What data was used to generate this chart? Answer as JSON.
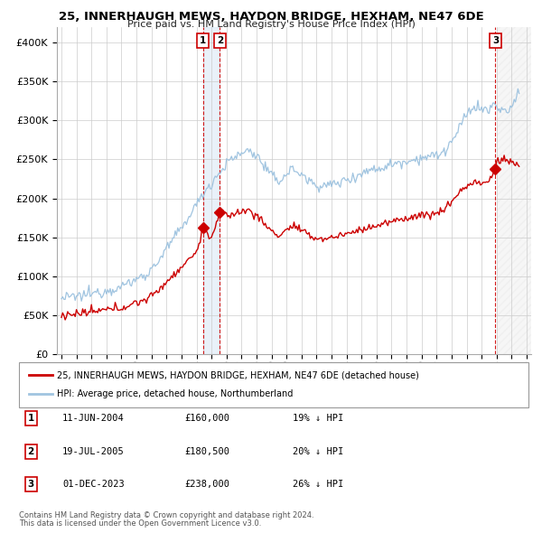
{
  "title": "25, INNERHAUGH MEWS, HAYDON BRIDGE, HEXHAM, NE47 6DE",
  "subtitle": "Price paid vs. HM Land Registry's House Price Index (HPI)",
  "legend_line1": "25, INNERHAUGH MEWS, HAYDON BRIDGE, HEXHAM, NE47 6DE (detached house)",
  "legend_line2": "HPI: Average price, detached house, Northumberland",
  "footnote1": "Contains HM Land Registry data © Crown copyright and database right 2024.",
  "footnote2": "This data is licensed under the Open Government Licence v3.0.",
  "sales": [
    {
      "label": "1",
      "date_str": "11-JUN-2004",
      "price": "£160,000",
      "note": "19% ↓ HPI",
      "date_num": 2004.44
    },
    {
      "label": "2",
      "date_str": "19-JUL-2005",
      "price": "£180,500",
      "note": "20% ↓ HPI",
      "date_num": 2005.55
    },
    {
      "label": "3",
      "date_str": "01-DEC-2023",
      "price": "£238,000",
      "note": "26% ↓ HPI",
      "date_num": 2023.92
    }
  ],
  "hpi_color": "#a0c4e0",
  "price_color": "#cc0000",
  "vline_color": "#cc0000",
  "marker_border_color": "#cc0000",
  "ylim": [
    0,
    420000
  ],
  "xlim_start": 1994.7,
  "xlim_end": 2026.3,
  "hpi_anchors": [
    [
      1995.0,
      72000
    ],
    [
      1996.0,
      74000
    ],
    [
      1997.0,
      78000
    ],
    [
      1998.0,
      82000
    ],
    [
      1999.0,
      87000
    ],
    [
      2000.0,
      96000
    ],
    [
      2001.0,
      108000
    ],
    [
      2002.0,
      135000
    ],
    [
      2003.0,
      162000
    ],
    [
      2004.0,
      192000
    ],
    [
      2004.5,
      208000
    ],
    [
      2005.0,
      220000
    ],
    [
      2005.5,
      232000
    ],
    [
      2006.0,
      245000
    ],
    [
      2007.0,
      258000
    ],
    [
      2007.5,
      262000
    ],
    [
      2008.0,
      255000
    ],
    [
      2008.5,
      242000
    ],
    [
      2009.0,
      228000
    ],
    [
      2009.5,
      222000
    ],
    [
      2010.0,
      232000
    ],
    [
      2010.5,
      238000
    ],
    [
      2011.0,
      230000
    ],
    [
      2011.5,
      222000
    ],
    [
      2012.0,
      218000
    ],
    [
      2012.5,
      215000
    ],
    [
      2013.0,
      218000
    ],
    [
      2013.5,
      220000
    ],
    [
      2014.0,
      224000
    ],
    [
      2014.5,
      228000
    ],
    [
      2015.0,
      232000
    ],
    [
      2015.5,
      236000
    ],
    [
      2016.0,
      238000
    ],
    [
      2016.5,
      240000
    ],
    [
      2017.0,
      244000
    ],
    [
      2017.5,
      246000
    ],
    [
      2018.0,
      248000
    ],
    [
      2018.5,
      250000
    ],
    [
      2019.0,
      252000
    ],
    [
      2019.5,
      254000
    ],
    [
      2020.0,
      254000
    ],
    [
      2020.5,
      260000
    ],
    [
      2021.0,
      272000
    ],
    [
      2021.5,
      288000
    ],
    [
      2022.0,
      308000
    ],
    [
      2022.5,
      318000
    ],
    [
      2023.0,
      315000
    ],
    [
      2023.5,
      312000
    ],
    [
      2023.92,
      322000
    ],
    [
      2024.0,
      318000
    ],
    [
      2024.5,
      310000
    ],
    [
      2025.0,
      315000
    ],
    [
      2025.5,
      340000
    ]
  ],
  "price_anchors": [
    [
      1995.0,
      50000
    ],
    [
      1996.0,
      52000
    ],
    [
      1997.0,
      54000
    ],
    [
      1998.0,
      57000
    ],
    [
      1999.0,
      60000
    ],
    [
      2000.0,
      66000
    ],
    [
      2001.0,
      74000
    ],
    [
      2002.0,
      93000
    ],
    [
      2003.0,
      112000
    ],
    [
      2004.0,
      132000
    ],
    [
      2004.44,
      160000
    ],
    [
      2005.0,
      150000
    ],
    [
      2005.55,
      180500
    ],
    [
      2006.0,
      178000
    ],
    [
      2007.0,
      183000
    ],
    [
      2007.5,
      185000
    ],
    [
      2008.0,
      178000
    ],
    [
      2008.5,
      168000
    ],
    [
      2009.0,
      158000
    ],
    [
      2009.5,
      152000
    ],
    [
      2010.0,
      160000
    ],
    [
      2010.5,
      165000
    ],
    [
      2011.0,
      158000
    ],
    [
      2011.5,
      152000
    ],
    [
      2012.0,
      149000
    ],
    [
      2012.5,
      148000
    ],
    [
      2013.0,
      150000
    ],
    [
      2013.5,
      152000
    ],
    [
      2014.0,
      155000
    ],
    [
      2014.5,
      157000
    ],
    [
      2015.0,
      160000
    ],
    [
      2015.5,
      163000
    ],
    [
      2016.0,
      165000
    ],
    [
      2016.5,
      167000
    ],
    [
      2017.0,
      170000
    ],
    [
      2017.5,
      172000
    ],
    [
      2018.0,
      175000
    ],
    [
      2018.5,
      177000
    ],
    [
      2019.0,
      178000
    ],
    [
      2019.5,
      180000
    ],
    [
      2020.0,
      180000
    ],
    [
      2020.5,
      186000
    ],
    [
      2021.0,
      196000
    ],
    [
      2021.5,
      208000
    ],
    [
      2022.0,
      215000
    ],
    [
      2022.5,
      222000
    ],
    [
      2023.0,
      218000
    ],
    [
      2023.5,
      222000
    ],
    [
      2023.92,
      238000
    ],
    [
      2024.0,
      248000
    ],
    [
      2024.5,
      250000
    ],
    [
      2025.0,
      246000
    ],
    [
      2025.5,
      242000
    ]
  ]
}
